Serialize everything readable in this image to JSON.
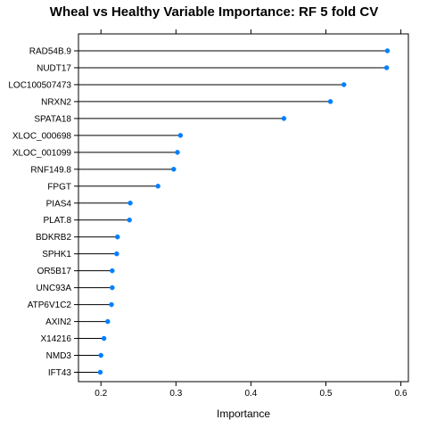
{
  "chart_data": {
    "type": "dotplot",
    "title": "Wheal vs Healthy Variable Importance: RF 5 fold CV",
    "xlabel": "Importance",
    "ylabel": "",
    "xlim": [
      0.17,
      0.61
    ],
    "x_ticks": [
      0.2,
      0.3,
      0.4,
      0.5,
      0.6
    ],
    "x_tick_labels": [
      "0.2",
      "0.3",
      "0.4",
      "0.5",
      "0.6"
    ],
    "grid": false,
    "point_color": "#0080ff",
    "categories": [
      "RAD54B.9",
      "NUDT17",
      "LOC100507473",
      "NRXN2",
      "SPATA18",
      "XLOC_000698",
      "XLOC_001099",
      "RNF149.8",
      "FPGT",
      "PIAS4",
      "PLAT.8",
      "BDKRB2",
      "SPHK1",
      "OR5B17",
      "UNC93A",
      "ATP6V1C2",
      "AXIN2",
      "X14216",
      "NMD3",
      "IFT43"
    ],
    "values": [
      0.582,
      0.581,
      0.524,
      0.506,
      0.444,
      0.306,
      0.302,
      0.297,
      0.276,
      0.239,
      0.238,
      0.222,
      0.221,
      0.215,
      0.215,
      0.214,
      0.209,
      0.204,
      0.2,
      0.199
    ]
  }
}
